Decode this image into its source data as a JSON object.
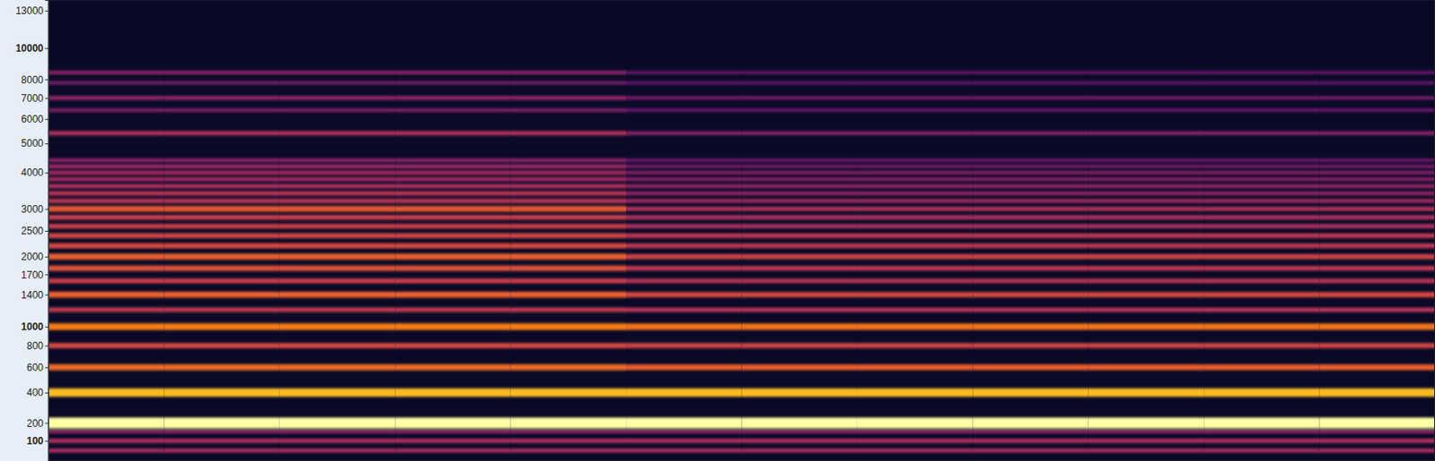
{
  "chart_data": {
    "type": "spectrogram",
    "color": "inferno",
    "tick_labels": "y",
    "ylim": [
      0,
      14000
    ],
    "yticks": [
      100,
      200,
      400,
      600,
      800,
      1000,
      1400,
      1700,
      2000,
      2500,
      3000,
      4000,
      5000,
      6000,
      7000,
      8000,
      10000,
      13000
    ],
    "xlim": [
      0,
      12
    ],
    "bins": [
      0,
      1,
      2,
      3,
      4,
      5,
      6,
      7,
      8,
      9,
      10,
      11,
      12
    ],
    "zlim": [
      -90,
      0
    ],
    "rows": [
      {
        "freq": 50,
        "values": [
          -50,
          -50,
          -50,
          -50,
          -50,
          -50,
          -50,
          -50,
          -50,
          -50,
          -50,
          -50
        ]
      },
      {
        "freq": 100,
        "values": [
          -48,
          -48,
          -48,
          -48,
          -48,
          -48,
          -48,
          -48,
          -48,
          -48,
          -48,
          -48
        ]
      },
      {
        "freq": 150,
        "values": [
          -55,
          -55,
          -55,
          -55,
          -55,
          -55,
          -55,
          -55,
          -55,
          -55,
          -55,
          -55
        ]
      },
      {
        "freq": 200,
        "values": [
          0,
          0,
          0,
          0,
          0,
          0,
          0,
          0,
          0,
          0,
          0,
          0
        ]
      },
      {
        "freq": 400,
        "values": [
          -14,
          -14,
          -14,
          -14,
          -14,
          -14,
          -14,
          -14,
          -14,
          -14,
          -14,
          -14
        ]
      },
      {
        "freq": 600,
        "values": [
          -30,
          -30,
          -30,
          -30,
          -30,
          -33,
          -33,
          -33,
          -33,
          -33,
          -33,
          -33
        ]
      },
      {
        "freq": 800,
        "values": [
          -38,
          -38,
          -38,
          -38,
          -38,
          -40,
          -40,
          -40,
          -40,
          -40,
          -40,
          -40
        ]
      },
      {
        "freq": 1000,
        "values": [
          -26,
          -26,
          -26,
          -26,
          -26,
          -28,
          -28,
          -28,
          -28,
          -28,
          -28,
          -28
        ]
      },
      {
        "freq": 1200,
        "values": [
          -44,
          -44,
          -44,
          -44,
          -44,
          -46,
          -46,
          -46,
          -46,
          -46,
          -46,
          -46
        ]
      },
      {
        "freq": 1400,
        "values": [
          -32,
          -32,
          -32,
          -32,
          -32,
          -38,
          -38,
          -38,
          -38,
          -38,
          -38,
          -38
        ]
      },
      {
        "freq": 1600,
        "values": [
          -42,
          -42,
          -42,
          -42,
          -42,
          -46,
          -46,
          -46,
          -46,
          -46,
          -46,
          -46
        ]
      },
      {
        "freq": 1800,
        "values": [
          -36,
          -36,
          -36,
          -36,
          -36,
          -44,
          -44,
          -44,
          -44,
          -44,
          -44,
          -44
        ]
      },
      {
        "freq": 2000,
        "values": [
          -32,
          -32,
          -32,
          -32,
          -32,
          -40,
          -40,
          -40,
          -40,
          -40,
          -40,
          -40
        ]
      },
      {
        "freq": 2200,
        "values": [
          -38,
          -38,
          -38,
          -38,
          -38,
          -44,
          -44,
          -44,
          -44,
          -44,
          -44,
          -44
        ]
      },
      {
        "freq": 2400,
        "values": [
          -40,
          -40,
          -40,
          -40,
          -40,
          -44,
          -44,
          -44,
          -44,
          -44,
          -44,
          -44
        ]
      },
      {
        "freq": 2600,
        "values": [
          -42,
          -42,
          -42,
          -42,
          -42,
          -48,
          -48,
          -48,
          -48,
          -48,
          -48,
          -48
        ]
      },
      {
        "freq": 2800,
        "values": [
          -42,
          -42,
          -42,
          -42,
          -42,
          -48,
          -48,
          -48,
          -48,
          -48,
          -48,
          -48
        ]
      },
      {
        "freq": 3000,
        "values": [
          -34,
          -34,
          -34,
          -34,
          -34,
          -48,
          -48,
          -48,
          -48,
          -48,
          -48,
          -48
        ]
      },
      {
        "freq": 3200,
        "values": [
          -46,
          -46,
          -46,
          -46,
          -46,
          -52,
          -52,
          -52,
          -52,
          -52,
          -52,
          -52
        ]
      },
      {
        "freq": 3400,
        "values": [
          -46,
          -46,
          -46,
          -46,
          -46,
          -54,
          -54,
          -54,
          -54,
          -54,
          -54,
          -54
        ]
      },
      {
        "freq": 3600,
        "values": [
          -48,
          -48,
          -48,
          -48,
          -48,
          -54,
          -54,
          -54,
          -54,
          -54,
          -54,
          -54
        ]
      },
      {
        "freq": 3800,
        "values": [
          -50,
          -50,
          -50,
          -50,
          -50,
          -56,
          -56,
          -56,
          -56,
          -56,
          -56,
          -56
        ]
      },
      {
        "freq": 4000,
        "values": [
          -50,
          -50,
          -50,
          -50,
          -50,
          -58,
          -58,
          -58,
          -58,
          -58,
          -58,
          -58
        ]
      },
      {
        "freq": 4200,
        "values": [
          -52,
          -52,
          -52,
          -52,
          -52,
          -60,
          -60,
          -60,
          -60,
          -60,
          -60,
          -60
        ]
      },
      {
        "freq": 4400,
        "values": [
          -56,
          -56,
          -56,
          -56,
          -56,
          -62,
          -62,
          -62,
          -62,
          -62,
          -62,
          -62
        ]
      },
      {
        "freq": 5400,
        "values": [
          -48,
          -48,
          -48,
          -48,
          -48,
          -56,
          -56,
          -56,
          -56,
          -56,
          -56,
          -56
        ]
      },
      {
        "freq": 6400,
        "values": [
          -58,
          -58,
          -58,
          -58,
          -58,
          -62,
          -62,
          -62,
          -62,
          -62,
          -62,
          -62
        ]
      },
      {
        "freq": 7000,
        "values": [
          -54,
          -54,
          -54,
          -54,
          -54,
          -60,
          -60,
          -60,
          -60,
          -60,
          -60,
          -60
        ]
      },
      {
        "freq": 7800,
        "values": [
          -60,
          -60,
          -60,
          -60,
          -60,
          -64,
          -64,
          -64,
          -64,
          -64,
          -64,
          -64
        ]
      },
      {
        "freq": 8400,
        "values": [
          -56,
          -56,
          -56,
          -56,
          -56,
          -64,
          -64,
          -64,
          -64,
          -64,
          -64,
          -64
        ]
      }
    ]
  }
}
